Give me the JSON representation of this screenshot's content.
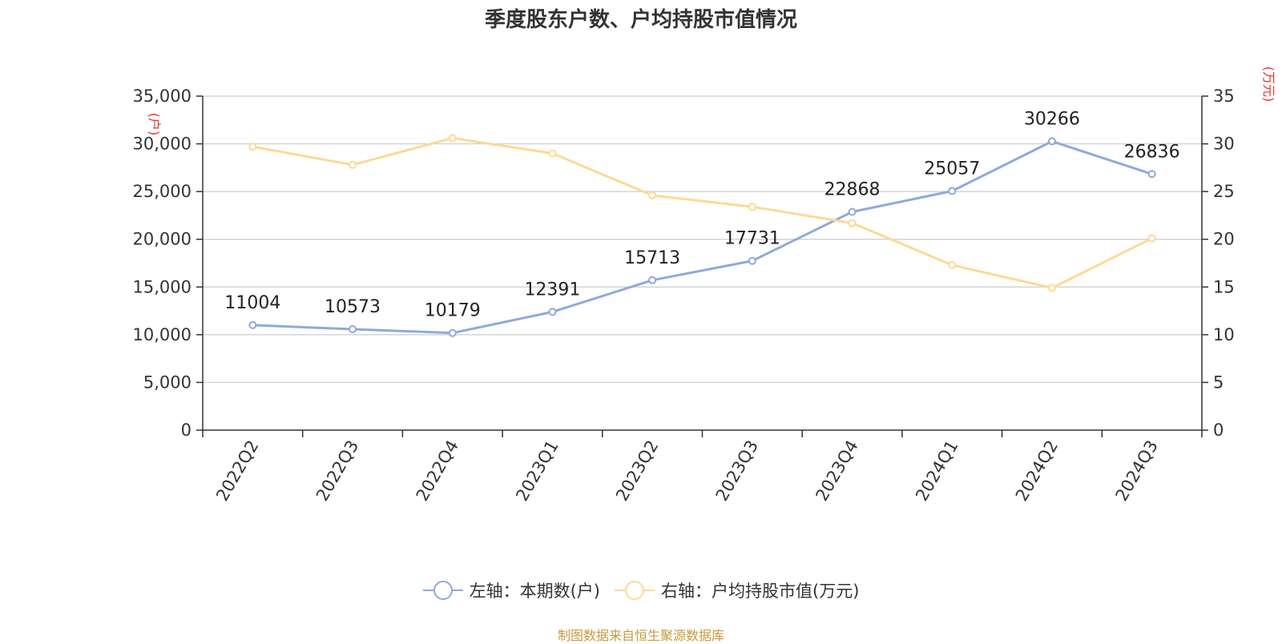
{
  "chart_data": {
    "type": "line",
    "title": "季度股东户数、户均持股市值情况",
    "categories": [
      "2022Q2",
      "2022Q3",
      "2022Q4",
      "2023Q1",
      "2023Q2",
      "2023Q3",
      "2023Q4",
      "2024Q1",
      "2024Q2",
      "2024Q3"
    ],
    "left_axis": {
      "unit_label": "(户)",
      "ylim": [
        0,
        35000
      ],
      "tick_labels": [
        "0",
        "5,000",
        "10,000",
        "15,000",
        "20,000",
        "25,000",
        "30,000",
        "35,000"
      ]
    },
    "right_axis": {
      "unit_label": "(万元)",
      "ylim": [
        0,
        35
      ],
      "tick_labels": [
        "0",
        "5",
        "10",
        "15",
        "20",
        "25",
        "30",
        "35"
      ]
    },
    "series": [
      {
        "name": "左轴：本期数(户)",
        "axis": "left",
        "color": "#8eaadb",
        "values": [
          11004,
          10573,
          10179,
          12391,
          15713,
          17731,
          22868,
          25057,
          30266,
          26836
        ],
        "data_labels": [
          "11004",
          "10573",
          "10179",
          "12391",
          "15713",
          "17731",
          "22868",
          "25057",
          "30266",
          "26836"
        ]
      },
      {
        "name": "右轴：户均持股市值(万元)",
        "axis": "right",
        "color": "#fdd996",
        "values": [
          29.7,
          27.8,
          30.6,
          29.0,
          24.6,
          23.4,
          21.7,
          17.3,
          14.9,
          20.1
        ]
      }
    ],
    "grid": true,
    "legend_position": "bottom",
    "unit_label_color": "#e63232"
  },
  "source_note": "制图数据来自恒生聚源数据库",
  "source_note_color": "#c99a3c"
}
